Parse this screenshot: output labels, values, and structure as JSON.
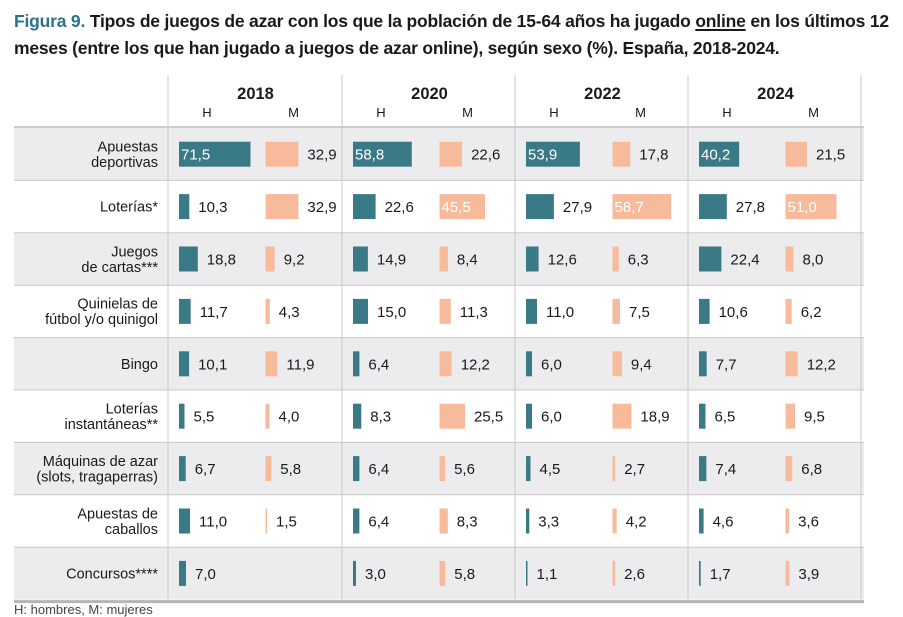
{
  "title": {
    "lead": "Figura 9.",
    "text_before": "Tipos de juegos de azar con los que la población de 15-64 años ha jugado",
    "underlined": "online",
    "text_after": "en los últimos 12 meses (entre los que han jugado a juegos de azar online), según sexo (%). España, 2018-2024."
  },
  "footer": "H: hombres, M: mujeres",
  "colors": {
    "hombres": "#3a7a87",
    "mujeres": "#f7bb9c",
    "row_band": "#ececee",
    "grid": "#c8c8c8"
  },
  "chart_data": {
    "type": "bar",
    "title": "Tipos de juegos de azar con los que la población de 15-64 años ha jugado online en los últimos 12 meses (entre los que han jugado a juegos de azar online), según sexo (%). España, 2018-2024.",
    "years": [
      "2018",
      "2020",
      "2022",
      "2024"
    ],
    "sex_labels": [
      "H",
      "M"
    ],
    "categories": [
      [
        "Apuestas",
        "deportivas"
      ],
      [
        "Loterías*"
      ],
      [
        "Juegos",
        "de cartas***"
      ],
      [
        "Quinielas de",
        "fútbol y/o quinigol"
      ],
      [
        "Bingo"
      ],
      [
        "Loterías",
        "instantáneas**"
      ],
      [
        "Máquinas de azar",
        "(slots, tragaperras)"
      ],
      [
        "Apuestas de",
        "caballos"
      ],
      [
        "Concursos****"
      ]
    ],
    "series": [
      {
        "year": "2018",
        "sex": "H",
        "values": [
          71.5,
          10.3,
          18.8,
          11.7,
          10.1,
          5.5,
          6.7,
          11.0,
          7.0
        ]
      },
      {
        "year": "2018",
        "sex": "M",
        "values": [
          32.9,
          32.9,
          9.2,
          4.3,
          11.9,
          4.0,
          5.8,
          1.5,
          null
        ]
      },
      {
        "year": "2020",
        "sex": "H",
        "values": [
          58.8,
          22.6,
          14.9,
          15.0,
          6.4,
          8.3,
          6.4,
          6.4,
          3.0
        ]
      },
      {
        "year": "2020",
        "sex": "M",
        "values": [
          22.6,
          45.5,
          8.4,
          11.3,
          12.2,
          25.5,
          5.6,
          8.3,
          5.8
        ]
      },
      {
        "year": "2022",
        "sex": "H",
        "values": [
          53.9,
          27.9,
          12.6,
          11.0,
          6.0,
          6.0,
          4.5,
          3.3,
          1.1
        ]
      },
      {
        "year": "2022",
        "sex": "M",
        "values": [
          17.8,
          58.7,
          6.3,
          7.5,
          9.4,
          18.9,
          2.7,
          4.2,
          2.6
        ]
      },
      {
        "year": "2024",
        "sex": "H",
        "values": [
          40.2,
          27.8,
          22.4,
          10.6,
          7.7,
          6.5,
          7.4,
          4.6,
          1.7
        ]
      },
      {
        "year": "2024",
        "sex": "M",
        "values": [
          21.5,
          51.0,
          8.0,
          6.2,
          12.2,
          9.5,
          6.8,
          3.6,
          3.9
        ]
      }
    ],
    "value_format": "comma-decimal",
    "unit": "%"
  }
}
